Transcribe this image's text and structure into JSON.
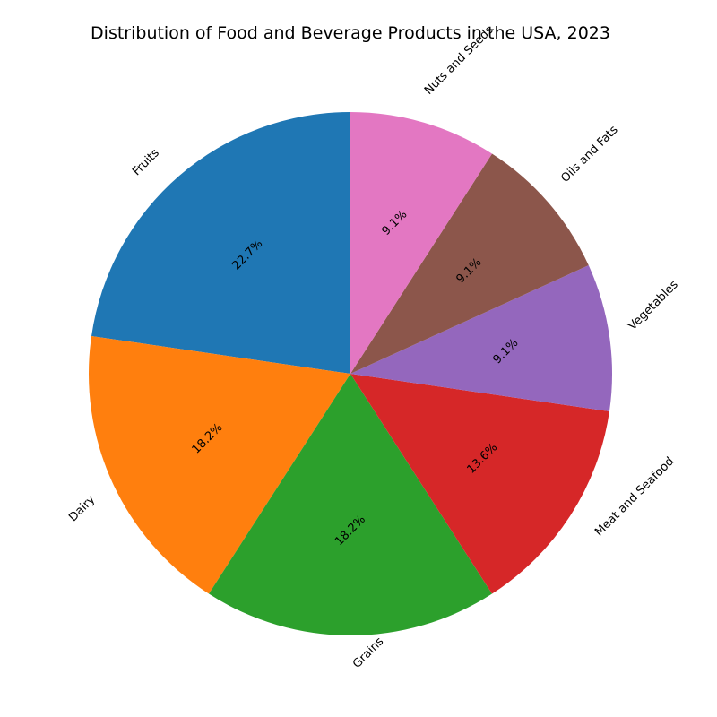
{
  "chart_data": {
    "type": "pie",
    "title": "Distribution of Food and Beverage Products in the USA, 2023",
    "start_angle_deg": 90,
    "direction": "counterclockwise",
    "label_rotation_deg": 45,
    "categories": [
      "Fruits",
      "Dairy",
      "Grains",
      "Meat and Seafood",
      "Vegetables",
      "Oils and Fats",
      "Nuts and Seeds"
    ],
    "values": [
      22.7,
      18.2,
      18.2,
      13.6,
      9.1,
      9.1,
      9.1
    ],
    "value_labels": [
      "22.7%",
      "18.2%",
      "18.2%",
      "13.6%",
      "9.1%",
      "9.1%",
      "9.1%"
    ],
    "colors": [
      "#1f77b4",
      "#ff7f0e",
      "#2ca02c",
      "#d62728",
      "#9467bd",
      "#8c564b",
      "#e377c2"
    ]
  }
}
